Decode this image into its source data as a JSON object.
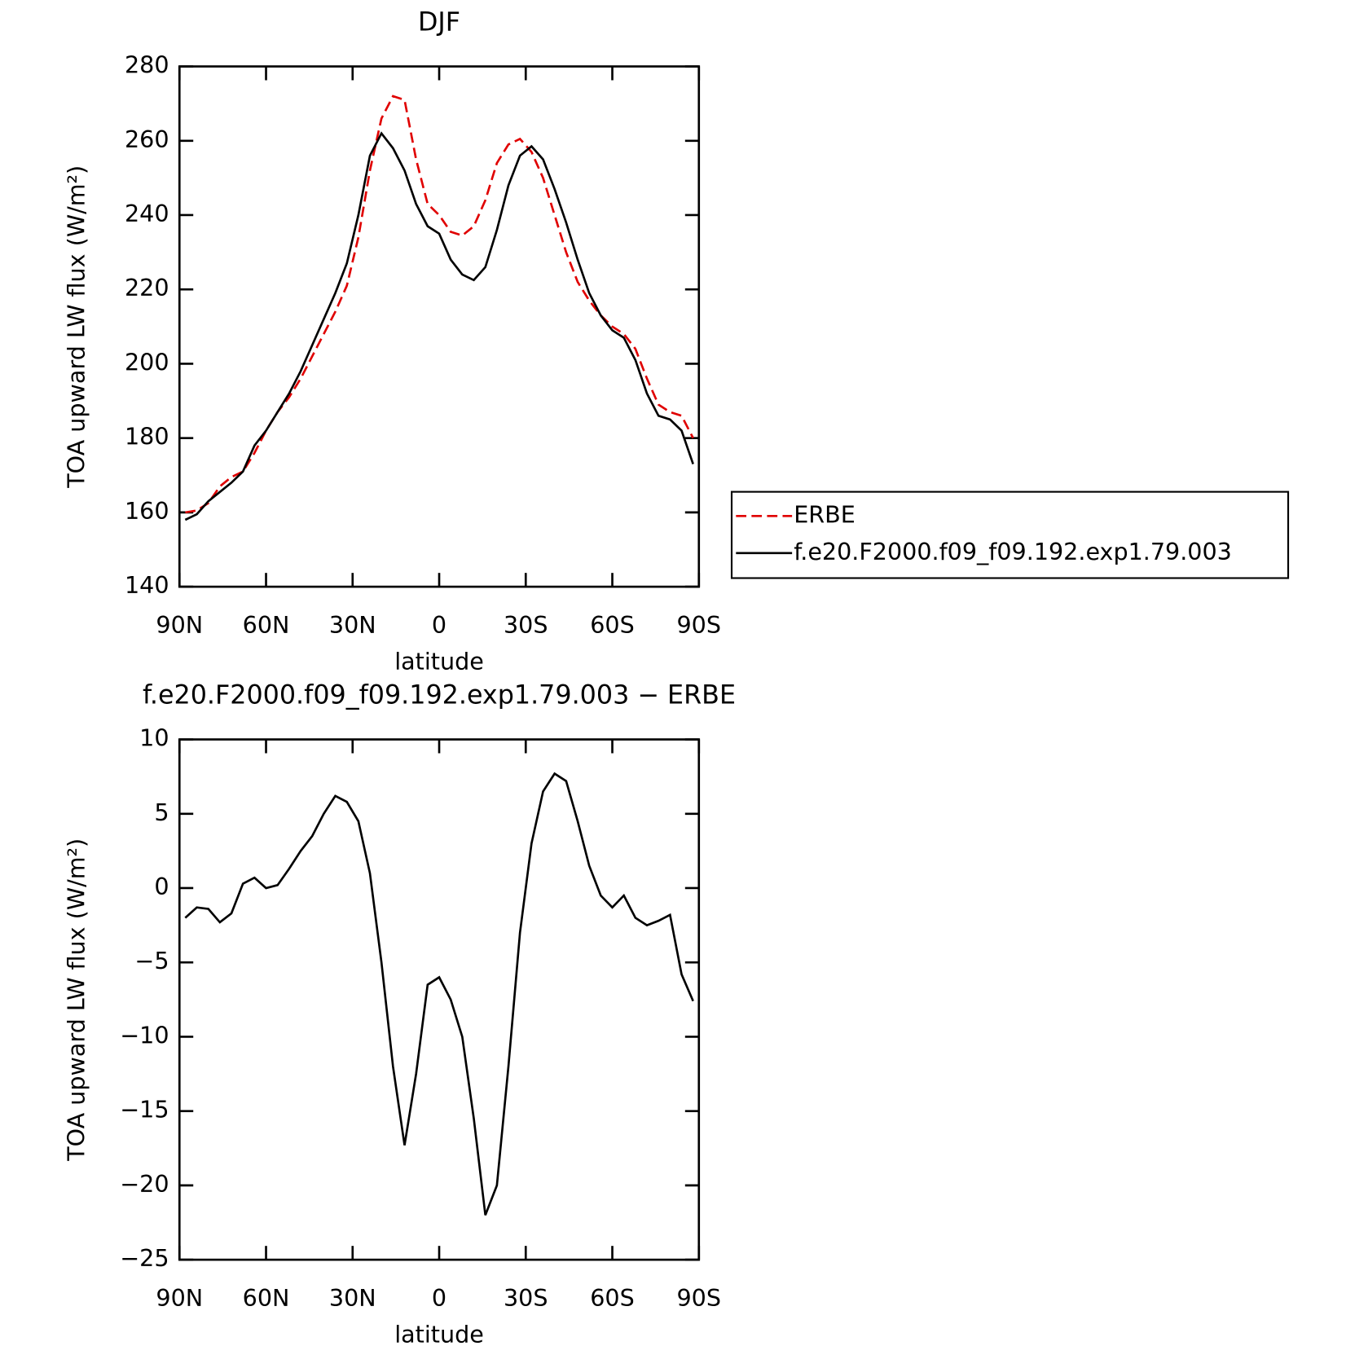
{
  "chart_data": [
    {
      "type": "line",
      "title": "DJF",
      "x_label": "latitude",
      "y_label": "TOA upward LW flux (W/m²)",
      "xlim": [
        90,
        -90
      ],
      "xticks": [
        {
          "value": 90,
          "label": "90N"
        },
        {
          "value": 60,
          "label": "60N"
        },
        {
          "value": 30,
          "label": "30N"
        },
        0,
        {
          "value": -30,
          "label": "30S"
        },
        {
          "value": -60,
          "label": "60S"
        },
        {
          "value": -90,
          "label": "90S"
        }
      ],
      "ylim": [
        140,
        280
      ],
      "yticks": [
        140,
        160,
        180,
        200,
        220,
        240,
        260,
        280
      ],
      "legend": "right",
      "x": [
        88,
        84,
        80,
        76,
        72,
        68,
        64,
        60,
        56,
        52,
        48,
        44,
        40,
        36,
        32,
        28,
        24,
        20,
        16,
        12,
        8,
        4,
        0,
        -4,
        -8,
        -12,
        -16,
        -20,
        -24,
        -28,
        -32,
        -36,
        -40,
        -44,
        -48,
        -52,
        -56,
        -60,
        -64,
        -68,
        -72,
        -76,
        -80,
        -84,
        -88
      ],
      "series": [
        {
          "name": "ERBE",
          "color": "#e00000",
          "dashed": true,
          "values": [
            160,
            160.5,
            162.5,
            167,
            169.5,
            171,
            176,
            182,
            187,
            191,
            196,
            202,
            208,
            214,
            221,
            234,
            252,
            266,
            272,
            271,
            255,
            243,
            240,
            235.5,
            234.5,
            237,
            244,
            254,
            259,
            260.5,
            257,
            250,
            240,
            230,
            222,
            217,
            213,
            210,
            208,
            204,
            196,
            189,
            187,
            186,
            180
          ]
        },
        {
          "name": "f.e20.F2000.f09_f09.192.exp1.79.003",
          "color": "#000000",
          "dashed": false,
          "values": [
            158,
            159.5,
            163,
            165.5,
            168,
            171,
            178,
            182,
            187,
            192,
            198,
            205,
            212,
            219,
            227,
            240,
            256,
            262,
            258,
            252,
            243,
            237,
            235,
            228,
            224,
            222.5,
            226,
            236,
            248,
            256,
            258.5,
            255,
            247,
            238,
            228,
            219,
            213,
            209,
            207,
            201,
            192,
            186,
            185,
            182,
            173
          ]
        }
      ]
    },
    {
      "type": "line",
      "title": "f.e20.F2000.f09_f09.192.exp1.79.003 − ERBE",
      "x_label": "latitude",
      "y_label": "TOA upward LW flux (W/m²)",
      "xlim": [
        90,
        -90
      ],
      "xticks": [
        {
          "value": 90,
          "label": "90N"
        },
        {
          "value": 60,
          "label": "60N"
        },
        {
          "value": 30,
          "label": "30N"
        },
        0,
        {
          "value": -30,
          "label": "30S"
        },
        {
          "value": -60,
          "label": "60S"
        },
        {
          "value": -90,
          "label": "90S"
        }
      ],
      "ylim": [
        -25,
        10
      ],
      "yticks": [
        {
          "value": -25,
          "label": "−25"
        },
        {
          "value": -20,
          "label": "−20"
        },
        {
          "value": -15,
          "label": "−15"
        },
        {
          "value": -10,
          "label": "−10"
        },
        {
          "value": -5,
          "label": "−5"
        },
        0,
        5,
        10
      ],
      "x": [
        88,
        84,
        80,
        76,
        72,
        68,
        64,
        60,
        56,
        52,
        48,
        44,
        40,
        36,
        32,
        28,
        24,
        20,
        16,
        12,
        8,
        4,
        0,
        -4,
        -8,
        -12,
        -16,
        -20,
        -24,
        -28,
        -32,
        -36,
        -40,
        -44,
        -48,
        -52,
        -56,
        -60,
        -64,
        -68,
        -72,
        -76,
        -80,
        -84,
        -88
      ],
      "series": [
        {
          "color": "#000000",
          "dashed": false,
          "values": [
            -2.0,
            -1.3,
            -1.4,
            -2.3,
            -1.7,
            0.3,
            0.7,
            0.0,
            0.2,
            1.3,
            2.5,
            3.5,
            5.0,
            6.2,
            5.8,
            4.5,
            1.0,
            -5,
            -12,
            -17.3,
            -12.5,
            -6.5,
            -6,
            -7.5,
            -10,
            -15.5,
            -22,
            -20,
            -12,
            -3,
            3,
            6.5,
            7.7,
            7.2,
            4.5,
            1.5,
            -0.5,
            -1.3,
            -0.5,
            -2.0,
            -2.5,
            -2.2,
            -1.8,
            -5.8,
            -7.6
          ]
        }
      ]
    }
  ]
}
